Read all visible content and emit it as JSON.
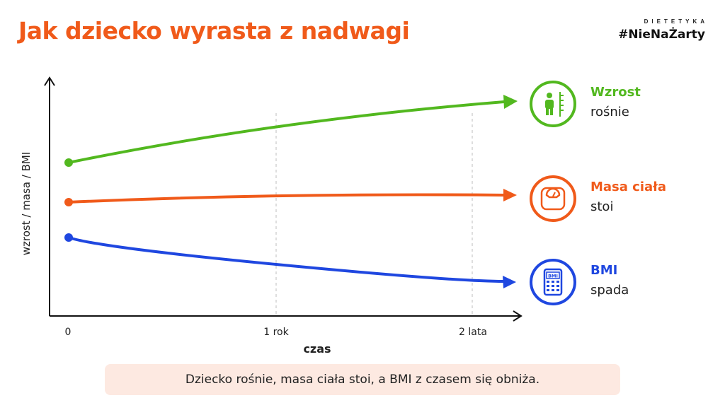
{
  "title": "Jak dziecko wyrasta z nadwagi",
  "brand": {
    "top": "DIETETYKA",
    "main": "#NieNaŻarty"
  },
  "note": "Dziecko rośnie, masa ciała stoi, a BMI z czasem się obniża.",
  "chart_data": {
    "type": "line",
    "xlabel": "czas",
    "ylabel": "wzrost / masa / BMI",
    "x_ticks": [
      "0",
      "1 rok",
      "2 lata"
    ],
    "grid": "vertical dashed at 1 rok and 2 lata",
    "series": [
      {
        "name": "Wzrost",
        "trend": "rośnie",
        "color": "#52b81f",
        "icon": "child-height-icon"
      },
      {
        "name": "Masa ciała",
        "trend": "stoi",
        "color": "#f05a1a",
        "icon": "scale-icon"
      },
      {
        "name": "BMI",
        "trend": "spada",
        "color": "#1f47e0",
        "icon": "bmi-calculator-icon",
        "icon_text": "BMI"
      }
    ]
  }
}
